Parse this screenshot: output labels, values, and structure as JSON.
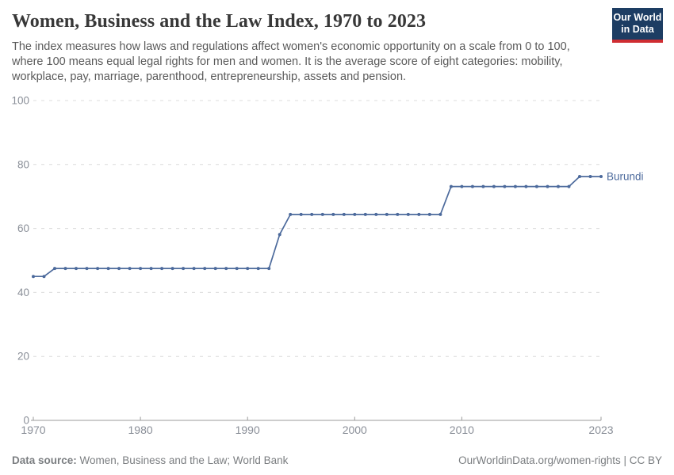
{
  "header": {
    "title": "Women, Business and the Law Index, 1970 to 2023",
    "subtitle": "The index measures how laws and regulations affect women's economic opportunity on a scale from 0 to 100, where 100 means equal legal rights for men and women. It is the average score of eight categories: mobility, workplace, pay, marriage, parenthood, entrepreneurship, assets and pension.",
    "logo": {
      "line1": "Our World",
      "line2": "in Data"
    }
  },
  "chart_data": {
    "type": "line",
    "title": "Women, Business and the Law Index, 1970 to 2023",
    "xlabel": "",
    "ylabel": "",
    "xlim": [
      1970,
      2023
    ],
    "ylim": [
      0,
      100
    ],
    "x_ticks": [
      1970,
      1980,
      1990,
      2000,
      2010,
      2023
    ],
    "y_ticks": [
      0,
      20,
      40,
      60,
      80,
      100
    ],
    "grid": "horizontal-dashed",
    "legend_position": "end-of-line-label",
    "series": [
      {
        "name": "Burundi",
        "color": "#4C6A9C",
        "points": [
          [
            1970,
            45
          ],
          [
            1971,
            45
          ],
          [
            1972,
            47.5
          ],
          [
            1973,
            47.5
          ],
          [
            1974,
            47.5
          ],
          [
            1975,
            47.5
          ],
          [
            1976,
            47.5
          ],
          [
            1977,
            47.5
          ],
          [
            1978,
            47.5
          ],
          [
            1979,
            47.5
          ],
          [
            1980,
            47.5
          ],
          [
            1981,
            47.5
          ],
          [
            1982,
            47.5
          ],
          [
            1983,
            47.5
          ],
          [
            1984,
            47.5
          ],
          [
            1985,
            47.5
          ],
          [
            1986,
            47.5
          ],
          [
            1987,
            47.5
          ],
          [
            1988,
            47.5
          ],
          [
            1989,
            47.5
          ],
          [
            1990,
            47.5
          ],
          [
            1991,
            47.5
          ],
          [
            1992,
            47.5
          ],
          [
            1993,
            58.125
          ],
          [
            1994,
            64.375
          ],
          [
            1995,
            64.375
          ],
          [
            1996,
            64.375
          ],
          [
            1997,
            64.375
          ],
          [
            1998,
            64.375
          ],
          [
            1999,
            64.375
          ],
          [
            2000,
            64.375
          ],
          [
            2001,
            64.375
          ],
          [
            2002,
            64.375
          ],
          [
            2003,
            64.375
          ],
          [
            2004,
            64.375
          ],
          [
            2005,
            64.375
          ],
          [
            2006,
            64.375
          ],
          [
            2007,
            64.375
          ],
          [
            2008,
            64.375
          ],
          [
            2009,
            73.125
          ],
          [
            2010,
            73.125
          ],
          [
            2011,
            73.125
          ],
          [
            2012,
            73.125
          ],
          [
            2013,
            73.125
          ],
          [
            2014,
            73.125
          ],
          [
            2015,
            73.125
          ],
          [
            2016,
            73.125
          ],
          [
            2017,
            73.125
          ],
          [
            2018,
            73.125
          ],
          [
            2019,
            73.125
          ],
          [
            2020,
            73.125
          ],
          [
            2021,
            76.25
          ],
          [
            2022,
            76.25
          ],
          [
            2023,
            76.25
          ]
        ]
      }
    ]
  },
  "appearance": {
    "series_color": "#4C6A9C",
    "grid_color": "#dcdcdc",
    "axis_color": "#9b9b9b",
    "tick_label_color": "#8a8f98",
    "logo_bg": "#1d3d63",
    "logo_stripe": "#cf2d32"
  },
  "footer": {
    "datasource_label": "Data source:",
    "datasource_value": " Women, Business and the Law; World Bank",
    "credit": "OurWorldinData.org/women-rights | CC BY"
  }
}
